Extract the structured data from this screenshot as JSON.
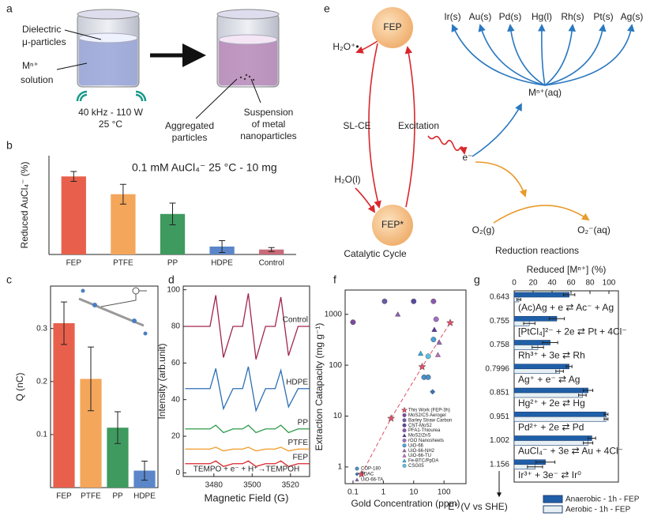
{
  "panel_labels": [
    "a",
    "b",
    "c",
    "d",
    "e",
    "f",
    "g"
  ],
  "panel_a": {
    "particles_label": [
      "Dielectric",
      "μ-particles"
    ],
    "solution_label": [
      "Mⁿ⁺",
      "solution"
    ],
    "conditions": [
      "40 kHz - 110 W",
      "25 °C"
    ],
    "aggregated_label": [
      "Aggregated",
      "particles"
    ],
    "suspension_label": [
      "Suspension",
      "of metal",
      "nanoparticles"
    ]
  },
  "panel_e": {
    "fep": "FEP",
    "fep_star": "FEP*",
    "h2o_radical": "H₂O⁺•",
    "slce": "SL-CE",
    "excitation": "Excitation",
    "h2o_liquid": "H₂O(l)",
    "electron": "e⁻",
    "cycle_label": "Catalytic Cycle",
    "o2": "O₂(g)",
    "superoxide": "O₂⁻(aq)",
    "reduction_label": "Reduction reactions",
    "metal_ion": "Mⁿ⁺(aq)",
    "metals": [
      "Ir(s)",
      "Au(s)",
      "Pd(s)",
      "Hg(l)",
      "Rh(s)",
      "Pt(s)",
      "Ag(s)"
    ]
  },
  "chart_data": [
    {
      "type": "bar",
      "ylabel": "Reduced AuCl₄⁻ (%)",
      "annotation": "0.1 mM AuCl₄⁻ 25 °C - 10 mg",
      "categories": [
        "FEP",
        "PTFE",
        "PP",
        "HDPE",
        "Control"
      ],
      "values": [
        79,
        61,
        41,
        8,
        5
      ],
      "errors": [
        5,
        10,
        11,
        6,
        2
      ],
      "colors": [
        "#e8604c",
        "#f4a65a",
        "#3f9a5f",
        "#5b86c9",
        "#c96a78"
      ],
      "ylim": [
        0,
        100
      ]
    },
    {
      "type": "bar",
      "ylabel": "Q (nC)",
      "categories": [
        "FEP",
        "PTFE",
        "PP",
        "HDPE"
      ],
      "values": [
        0.31,
        0.205,
        0.113,
        0.032
      ],
      "errors": [
        0.04,
        0.06,
        0.03,
        0.018
      ],
      "colors": [
        "#e8604c",
        "#f4a65a",
        "#3f9a5f",
        "#5b86c9"
      ],
      "ylim": [
        0,
        0.38
      ],
      "yticks": [
        0.1,
        0.2,
        0.3
      ]
    },
    {
      "type": "line",
      "xlabel": "Magnetic Field (G)",
      "ylabel": "Intensity (arb.unit)",
      "annotation": "TEMPO + e⁻ + H⁺→TEMPOH",
      "x": [
        3465,
        3478,
        3481,
        3485,
        3490,
        3495,
        3498,
        3502,
        3507,
        3512,
        3515,
        3519,
        3524,
        3530
      ],
      "series": [
        {
          "name": "Control",
          "color": "#a0244e",
          "values": [
            80,
            80,
            97,
            63,
            80,
            80,
            98,
            62,
            80,
            80,
            96,
            64,
            80,
            80
          ]
        },
        {
          "name": "HDPE",
          "color": "#2b6fb5",
          "values": [
            46,
            46,
            57,
            35,
            46,
            46,
            58,
            34,
            46,
            46,
            56,
            36,
            46,
            46
          ]
        },
        {
          "name": "PP",
          "color": "#2e9a4a",
          "values": [
            24,
            24,
            26,
            22,
            24,
            24,
            26,
            22,
            24,
            24,
            26,
            22,
            24,
            24
          ]
        },
        {
          "name": "PTFE",
          "color": "#f09a2a",
          "values": [
            13,
            13,
            14,
            12,
            13,
            13,
            14,
            12,
            13,
            13,
            14,
            12,
            13,
            13
          ]
        },
        {
          "name": "FEP",
          "color": "#d8262c",
          "values": [
            5,
            5,
            6.5,
            3.5,
            5,
            5,
            6.5,
            3.5,
            5,
            5,
            6.5,
            3.5,
            5,
            5
          ]
        }
      ],
      "xlim": [
        3464,
        3530
      ],
      "ylim": [
        -2,
        102
      ],
      "xticks": [
        3480,
        3500,
        3520
      ],
      "yticks": [
        0,
        20,
        40,
        60,
        80,
        100
      ]
    },
    {
      "type": "scatter",
      "log_scale": true,
      "trend_line": true,
      "xlabel": "Gold Concentration (ppm)",
      "ylabel": "Extraction Catapacity (mg g⁻¹)",
      "series": [
        {
          "name": "This Work (FEP-3h)",
          "color": "#e0506a",
          "marker": "star",
          "x": [
            0.19,
            1.8,
            19,
            160
          ],
          "values": [
            0.72,
            9,
            93,
            680
          ]
        },
        {
          "name": "MoS2/CS Aerogel",
          "color": "#7b4aa0",
          "marker": "circle",
          "x": [
            0.1
          ],
          "values": [
            700
          ]
        },
        {
          "name": "Barley Straw Carbon",
          "color": "#6a5ca8",
          "marker": "circle",
          "x": [
            1.1
          ],
          "values": [
            1800
          ]
        },
        {
          "name": "CNT-MoS2",
          "color": "#5a4aa0",
          "marker": "circle",
          "x": [
            10
          ],
          "values": [
            1800
          ]
        },
        {
          "name": "PFA1-Thiourea",
          "color": "#8a5ab0",
          "marker": "circle",
          "x": [
            45
          ],
          "values": [
            1800
          ]
        },
        {
          "name": "MoS2/ZnS",
          "color": "#5a3aa0",
          "marker": "triangle",
          "x": [
            48
          ],
          "values": [
            500
          ]
        },
        {
          "name": "rGO Nanosheets",
          "color": "#a070c0",
          "marker": "circle",
          "x": [
            55
          ],
          "values": [
            800
          ]
        },
        {
          "name": "UiO-66",
          "color": "#4aa0d8",
          "marker": "circle",
          "x": [
            45
          ],
          "values": [
            320
          ]
        },
        {
          "name": "UiO-66-NH2",
          "color": "#9a6ab8",
          "marker": "triangle",
          "x": [
            70
          ],
          "values": [
            280
          ]
        },
        {
          "name": "UiO-66-TU",
          "color": "#c070c0",
          "marker": "triangle",
          "x": [
            63
          ],
          "values": [
            160
          ]
        },
        {
          "name": "Fe-BTC/PpDA",
          "color": "#30b0e0",
          "marker": "triangle",
          "x": [
            17
          ],
          "values": [
            170
          ]
        },
        {
          "name": "CSG05",
          "color": "#60c0e0",
          "marker": "circle",
          "x": [
            30
          ],
          "values": [
            150
          ]
        },
        {
          "name": "COP-180",
          "color": "#4a90c8",
          "marker": "circle",
          "x": [
            22,
            30
          ],
          "values": [
            58,
            58
          ]
        },
        {
          "name": "TDAC",
          "color": "#3a70b8",
          "marker": "diamond",
          "x": [
            42
          ],
          "values": [
            30
          ]
        },
        {
          "name": "UiO-66-TA",
          "color": "#8a60b0",
          "marker": "triangle",
          "x": [
            3
          ],
          "values": [
            1000
          ]
        }
      ],
      "xlim": [
        0.055,
        530
      ],
      "ylim": [
        0.47,
        3000
      ],
      "xticks": [
        0.1,
        1,
        10,
        100
      ],
      "yticks": [
        1,
        10,
        100,
        1000
      ]
    },
    {
      "type": "hbar",
      "xlabel": "Reduced [Mⁿ⁺] (%)",
      "ylabel": "E° (V vs SHE)",
      "categories": [
        "0.643",
        "0.755",
        "0.758",
        "0.7996",
        "0.851",
        "0.951",
        "1.002",
        "1.156"
      ],
      "annotations": [
        "(Ac)Ag + e ⇄ Ac⁻ + Ag",
        "[PtCl₄]²⁻ + 2e ⇄ Pt + 4Cl⁻",
        "Rh³⁺ + 3e ⇄ Rh",
        "Ag⁺ + e⁻ ⇄ Ag",
        "Hg²⁺ + 2e ⇄ Hg",
        "Pd²⁺ + 2e ⇄ Pd",
        "AuCl₄⁻ + 3e ⇄ Au + 4Cl⁻",
        "Ir³⁺ + 3e⁻ ⇄ Ir⁰"
      ],
      "series": [
        {
          "name": "Anaerobic - 1h - FEP",
          "color": "#1f5fa8",
          "values": [
            58,
            45,
            38,
            58,
            78,
            97,
            82,
            33
          ],
          "errors": [
            6,
            8,
            8,
            3,
            5,
            2,
            4,
            10
          ]
        },
        {
          "name": "Aerobic - 1h - FEP",
          "color": "#e6f0f4",
          "values": [
            5,
            16,
            25,
            48,
            72,
            97,
            78,
            22
          ],
          "errors": [
            2,
            6,
            6,
            4,
            4,
            2,
            5,
            8
          ]
        }
      ],
      "xlim": [
        0,
        110
      ],
      "xticks": [
        0,
        20,
        40,
        60,
        80,
        100
      ]
    }
  ]
}
